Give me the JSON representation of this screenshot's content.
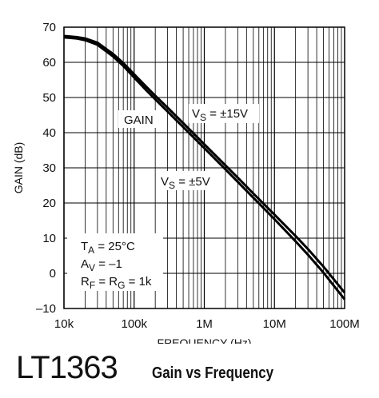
{
  "footer": {
    "part_number": "LT1363",
    "title": "Gain vs Frequency"
  },
  "chart_data": {
    "type": "line",
    "title": "Gain vs Frequency",
    "xlabel": "FREQUENCY (Hz)",
    "ylabel": "GAIN (dB)",
    "x_scale": "log",
    "xlim": [
      10000,
      100000000
    ],
    "ylim": [
      -10,
      70
    ],
    "x_tick_values": [
      10000,
      100000,
      1000000,
      10000000,
      100000000
    ],
    "x_tick_labels": [
      "10k",
      "100k",
      "1M",
      "10M",
      "100M"
    ],
    "y_ticks": [
      -10,
      0,
      10,
      20,
      30,
      40,
      50,
      60,
      70
    ],
    "y_tick_labels": [
      "–10",
      "0",
      "10",
      "20",
      "30",
      "40",
      "50",
      "60",
      "70"
    ],
    "grid": true,
    "line_color": "#000000",
    "series": [
      {
        "name": "VS = ±15V",
        "x": [
          10000,
          15000,
          20000,
          30000,
          50000,
          70000,
          100000,
          150000,
          200000,
          300000,
          500000,
          1000000,
          2000000,
          3000000,
          5000000,
          10000000,
          20000000,
          30000000,
          50000000,
          70000000,
          100000000
        ],
        "y": [
          67.5,
          67.2,
          66.8,
          65.6,
          62.4,
          59.8,
          56.6,
          53.0,
          50.5,
          47.1,
          42.7,
          36.7,
          30.7,
          27.2,
          22.7,
          16.7,
          10.6,
          6.9,
          1.9,
          -1.7,
          -5.5
        ]
      },
      {
        "name": "VS = ±5V",
        "x": [
          10000,
          15000,
          20000,
          30000,
          50000,
          70000,
          100000,
          150000,
          200000,
          300000,
          500000,
          1000000,
          2000000,
          3000000,
          5000000,
          10000000,
          20000000,
          30000000,
          50000000,
          70000000,
          100000000
        ],
        "y": [
          67.1,
          66.8,
          66.3,
          65.0,
          61.7,
          59.0,
          55.7,
          52.0,
          49.5,
          46.0,
          41.6,
          35.6,
          29.6,
          26.0,
          21.5,
          15.4,
          9.1,
          5.3,
          0.2,
          -3.5,
          -7.4
        ]
      }
    ],
    "annotations": {
      "gain_label": "GAIN",
      "vs15": {
        "base": "V",
        "sub": "S",
        "rest": " = ±15V"
      },
      "vs5": {
        "base": "V",
        "sub": "S",
        "rest": " = ±5V"
      },
      "conditions": [
        {
          "base": "T",
          "sub": "A",
          "rest": " = 25°C"
        },
        {
          "base": "A",
          "sub": "V",
          "rest": " = –1"
        },
        {
          "base": "R",
          "sub": "F",
          "rest": " = R",
          "sub2": "G",
          "rest2": " = 1k"
        }
      ]
    }
  }
}
